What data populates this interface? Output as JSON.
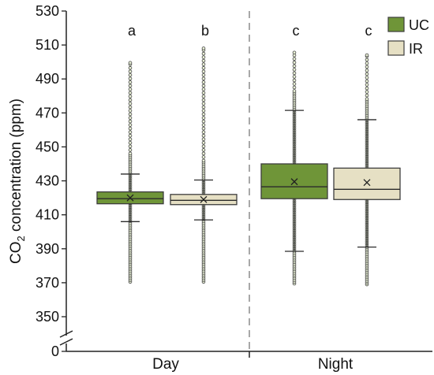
{
  "chart_data": {
    "type": "box",
    "ylabel_main": "CO",
    "ylabel_sub": "2",
    "ylabel_rest": " concentration (ppm)",
    "xlabel": "",
    "ylim": [
      340,
      530
    ],
    "y_break": true,
    "y_ticks": [
      350,
      370,
      390,
      410,
      430,
      450,
      470,
      490,
      510,
      530
    ],
    "y_break_label": "0",
    "groups": [
      "Day",
      "Night"
    ],
    "legend": {
      "position": "top-right",
      "entries": [
        {
          "name": "UC",
          "color": "#6f9538"
        },
        {
          "name": "IR",
          "color": "#e6e0c4"
        }
      ]
    },
    "grid": false,
    "separator": {
      "between": [
        "Day",
        "Night"
      ],
      "style": "dashed"
    },
    "boxes": [
      {
        "group": "Day",
        "series": "UC",
        "q1": 416.5,
        "median": 419.5,
        "q3": 423.5,
        "mean": 420,
        "whisker_low": 406,
        "whisker_high": 434,
        "min": 370.5,
        "max": 499.5,
        "letter": "a"
      },
      {
        "group": "Day",
        "series": "IR",
        "q1": 416.0,
        "median": 418.5,
        "q3": 422.0,
        "mean": 419,
        "whisker_low": 407,
        "whisker_high": 430.5,
        "min": 370.5,
        "max": 508.0,
        "letter": "b"
      },
      {
        "group": "Night",
        "series": "UC",
        "q1": 419.5,
        "median": 426.5,
        "q3": 440.0,
        "mean": 429.5,
        "whisker_low": 388.5,
        "whisker_high": 471.5,
        "min": 369.5,
        "max": 505.5,
        "letter": "c"
      },
      {
        "group": "Night",
        "series": "IR",
        "q1": 419.0,
        "median": 425.0,
        "q3": 437.5,
        "mean": 429,
        "whisker_low": 391.0,
        "whisker_high": 466.0,
        "min": 369.0,
        "max": 504.0,
        "letter": "c"
      }
    ],
    "colors": {
      "UC": "#6f9538",
      "IR": "#e6e0c4",
      "stroke": "#3d3d3d",
      "outlier_fill": "#e9f1d6",
      "outlier_stroke": "#4a4a4a",
      "separator": "#a8a8a8"
    }
  }
}
